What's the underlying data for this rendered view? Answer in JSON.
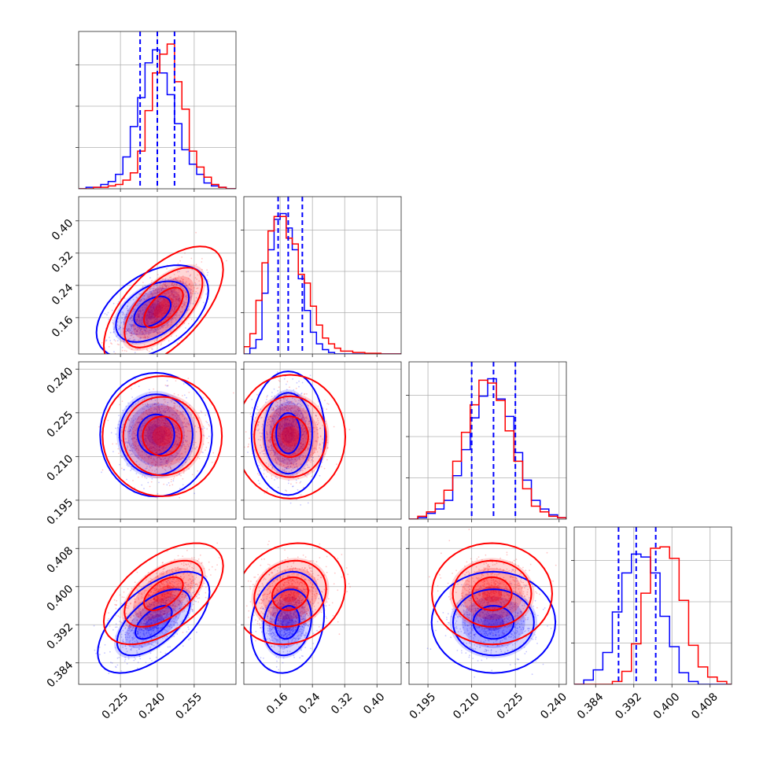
{
  "chart_data": {
    "type": "corner",
    "grid": true,
    "series": [
      {
        "color": "#0000ff"
      },
      {
        "color": "#ff0000"
      }
    ],
    "parameters": [
      {
        "range": [
          0.208,
          0.272
        ],
        "ticks": [
          "0.225",
          "0.240",
          "0.255"
        ],
        "tick_values": [
          0.225,
          0.24,
          0.255
        ]
      },
      {
        "range": [
          0.07,
          0.46
        ],
        "ticks": [
          "0.16",
          "0.24",
          "0.32",
          "0.40"
        ],
        "tick_values": [
          0.16,
          0.24,
          0.32,
          0.4
        ]
      },
      {
        "range": [
          0.1885,
          0.2425
        ],
        "ticks": [
          "0.195",
          "0.210",
          "0.225",
          "0.240"
        ],
        "tick_values": [
          0.195,
          0.21,
          0.225,
          0.24
        ]
      },
      {
        "range": [
          0.3795,
          0.4125
        ],
        "ticks": [
          "0.384",
          "0.392",
          "0.400",
          "0.408"
        ],
        "tick_values": [
          0.384,
          0.392,
          0.4,
          0.408
        ]
      }
    ],
    "quantile_lines": [
      [
        0.233,
        0.24,
        0.247
      ],
      [
        0.155,
        0.18,
        0.215
      ],
      [
        0.21,
        0.2175,
        0.225
      ],
      [
        0.3888,
        0.3925,
        0.3966
      ]
    ],
    "histograms": [
      {
        "blue": [
          [
            0.208,
            0.211,
            0
          ],
          [
            0.211,
            0.214,
            0.01
          ],
          [
            0.214,
            0.217,
            0.01
          ],
          [
            0.217,
            0.22,
            0.03
          ],
          [
            0.22,
            0.223,
            0.05
          ],
          [
            0.223,
            0.226,
            0.1
          ],
          [
            0.226,
            0.229,
            0.22
          ],
          [
            0.229,
            0.232,
            0.43
          ],
          [
            0.232,
            0.235,
            0.63
          ],
          [
            0.235,
            0.238,
            0.87
          ],
          [
            0.238,
            0.241,
            0.96
          ],
          [
            0.241,
            0.244,
            0.8
          ],
          [
            0.244,
            0.247,
            0.65
          ],
          [
            0.247,
            0.25,
            0.45
          ],
          [
            0.25,
            0.253,
            0.27
          ],
          [
            0.253,
            0.256,
            0.17
          ],
          [
            0.256,
            0.259,
            0.1
          ],
          [
            0.259,
            0.262,
            0.04
          ],
          [
            0.262,
            0.265,
            0.02
          ],
          [
            0.265,
            0.268,
            0.01
          ],
          [
            0.268,
            0.272,
            0
          ]
        ],
        "red": [
          [
            0.208,
            0.214,
            0
          ],
          [
            0.214,
            0.217,
            0.01
          ],
          [
            0.217,
            0.22,
            0.01
          ],
          [
            0.22,
            0.223,
            0.02
          ],
          [
            0.223,
            0.226,
            0.03
          ],
          [
            0.226,
            0.229,
            0.06
          ],
          [
            0.229,
            0.232,
            0.11
          ],
          [
            0.232,
            0.235,
            0.26
          ],
          [
            0.235,
            0.238,
            0.54
          ],
          [
            0.238,
            0.241,
            0.8
          ],
          [
            0.241,
            0.244,
            0.93
          ],
          [
            0.244,
            0.247,
            1.0
          ],
          [
            0.247,
            0.25,
            0.74
          ],
          [
            0.25,
            0.253,
            0.55
          ],
          [
            0.253,
            0.256,
            0.26
          ],
          [
            0.256,
            0.259,
            0.15
          ],
          [
            0.259,
            0.262,
            0.08
          ],
          [
            0.262,
            0.265,
            0.03
          ],
          [
            0.265,
            0.268,
            0.01
          ],
          [
            0.268,
            0.272,
            0
          ]
        ]
      },
      {
        "blue": [
          [
            0.07,
            0.085,
            0
          ],
          [
            0.085,
            0.1,
            0.04
          ],
          [
            0.1,
            0.115,
            0.1
          ],
          [
            0.115,
            0.13,
            0.42
          ],
          [
            0.13,
            0.145,
            0.72
          ],
          [
            0.145,
            0.16,
            0.93
          ],
          [
            0.16,
            0.175,
            0.97
          ],
          [
            0.175,
            0.19,
            0.87
          ],
          [
            0.19,
            0.205,
            0.72
          ],
          [
            0.205,
            0.22,
            0.52
          ],
          [
            0.22,
            0.235,
            0.3
          ],
          [
            0.235,
            0.25,
            0.15
          ],
          [
            0.25,
            0.265,
            0.07
          ],
          [
            0.265,
            0.28,
            0.03
          ],
          [
            0.28,
            0.295,
            0.01
          ],
          [
            0.295,
            0.46,
            0
          ]
        ],
        "red": [
          [
            0.07,
            0.085,
            0.05
          ],
          [
            0.085,
            0.1,
            0.14
          ],
          [
            0.1,
            0.115,
            0.37
          ],
          [
            0.115,
            0.13,
            0.63
          ],
          [
            0.13,
            0.145,
            0.85
          ],
          [
            0.145,
            0.16,
            0.95
          ],
          [
            0.16,
            0.175,
            0.95
          ],
          [
            0.175,
            0.19,
            0.8
          ],
          [
            0.19,
            0.205,
            0.76
          ],
          [
            0.205,
            0.22,
            0.55
          ],
          [
            0.22,
            0.235,
            0.49
          ],
          [
            0.235,
            0.25,
            0.33
          ],
          [
            0.25,
            0.265,
            0.2
          ],
          [
            0.265,
            0.28,
            0.11
          ],
          [
            0.28,
            0.295,
            0.07
          ],
          [
            0.295,
            0.31,
            0.04
          ],
          [
            0.31,
            0.325,
            0.02
          ],
          [
            0.325,
            0.34,
            0.02
          ],
          [
            0.34,
            0.37,
            0.01
          ],
          [
            0.37,
            0.41,
            0.005
          ],
          [
            0.41,
            0.46,
            0
          ]
        ]
      },
      {
        "blue": [
          [
            0.1885,
            0.1915,
            0
          ],
          [
            0.1915,
            0.1945,
            0.01
          ],
          [
            0.1945,
            0.1975,
            0.04
          ],
          [
            0.1975,
            0.2005,
            0.07
          ],
          [
            0.2005,
            0.2035,
            0.13
          ],
          [
            0.2035,
            0.2065,
            0.3
          ],
          [
            0.2065,
            0.2095,
            0.48
          ],
          [
            0.2095,
            0.2125,
            0.7
          ],
          [
            0.2125,
            0.2155,
            0.85
          ],
          [
            0.2155,
            0.2185,
            0.97
          ],
          [
            0.2185,
            0.2215,
            0.83
          ],
          [
            0.2215,
            0.2245,
            0.71
          ],
          [
            0.2245,
            0.2275,
            0.46
          ],
          [
            0.2275,
            0.2305,
            0.27
          ],
          [
            0.2305,
            0.2335,
            0.13
          ],
          [
            0.2335,
            0.2365,
            0.07
          ],
          [
            0.2365,
            0.2395,
            0.03
          ],
          [
            0.2395,
            0.2425,
            0.01
          ]
        ],
        "red": [
          [
            0.1885,
            0.1915,
            0
          ],
          [
            0.1915,
            0.1945,
            0.02
          ],
          [
            0.1945,
            0.1975,
            0.05
          ],
          [
            0.1975,
            0.2005,
            0.11
          ],
          [
            0.2005,
            0.2035,
            0.2
          ],
          [
            0.2035,
            0.2065,
            0.4
          ],
          [
            0.2065,
            0.2095,
            0.6
          ],
          [
            0.2095,
            0.2125,
            0.79
          ],
          [
            0.2125,
            0.2155,
            0.96
          ],
          [
            0.2155,
            0.2185,
            0.94
          ],
          [
            0.2185,
            0.2215,
            0.82
          ],
          [
            0.2215,
            0.2245,
            0.61
          ],
          [
            0.2245,
            0.2275,
            0.4
          ],
          [
            0.2275,
            0.2305,
            0.21
          ],
          [
            0.2305,
            0.2335,
            0.09
          ],
          [
            0.2335,
            0.2365,
            0.05
          ],
          [
            0.2365,
            0.2395,
            0.02
          ],
          [
            0.2395,
            0.2425,
            0.01
          ]
        ]
      },
      {
        "blue": [
          [
            0.3795,
            0.3815,
            0
          ],
          [
            0.3815,
            0.3835,
            0.03
          ],
          [
            0.3835,
            0.3855,
            0.1
          ],
          [
            0.3855,
            0.3875,
            0.22
          ],
          [
            0.3875,
            0.3895,
            0.5
          ],
          [
            0.3895,
            0.3915,
            0.77
          ],
          [
            0.3915,
            0.3935,
            0.9
          ],
          [
            0.3935,
            0.3955,
            0.88
          ],
          [
            0.3955,
            0.3975,
            0.77
          ],
          [
            0.3975,
            0.3995,
            0.47
          ],
          [
            0.3995,
            0.4015,
            0.26
          ],
          [
            0.4015,
            0.4035,
            0.08
          ],
          [
            0.4035,
            0.4055,
            0.02
          ],
          [
            0.4055,
            0.4125,
            0
          ]
        ],
        "red": [
          [
            0.3795,
            0.3875,
            0
          ],
          [
            0.3875,
            0.3895,
            0.02
          ],
          [
            0.3895,
            0.3915,
            0.09
          ],
          [
            0.3915,
            0.3935,
            0.28
          ],
          [
            0.3935,
            0.3955,
            0.63
          ],
          [
            0.3955,
            0.3975,
            0.94
          ],
          [
            0.3975,
            0.3995,
            0.95
          ],
          [
            0.3995,
            0.4015,
            0.87
          ],
          [
            0.4015,
            0.4035,
            0.58
          ],
          [
            0.4035,
            0.4055,
            0.27
          ],
          [
            0.4055,
            0.4075,
            0.12
          ],
          [
            0.4075,
            0.4095,
            0.05
          ],
          [
            0.4095,
            0.4115,
            0.02
          ],
          [
            0.4115,
            0.4125,
            0
          ]
        ]
      }
    ],
    "pairs": [
      {
        "row": 1,
        "col": 0,
        "blue": {
          "mean": [
            0.238,
            0.175
          ],
          "sd": [
            0.0075,
            0.038
          ],
          "rho": 0.45
        },
        "red": {
          "mean": [
            0.2425,
            0.185
          ],
          "sd": [
            0.008,
            0.05
          ],
          "rho": 0.62
        }
      },
      {
        "row": 2,
        "col": 0,
        "blue": {
          "mean": [
            0.2395,
            0.2175
          ],
          "sd": [
            0.0075,
            0.007
          ],
          "rho": 0.0
        },
        "red": {
          "mean": [
            0.242,
            0.217
          ],
          "sd": [
            0.008,
            0.0068
          ],
          "rho": 0.0
        }
      },
      {
        "row": 2,
        "col": 1,
        "blue": {
          "mean": [
            0.18,
            0.218
          ],
          "sd": [
            0.03,
            0.007
          ],
          "rho": 0.0
        },
        "red": {
          "mean": [
            0.185,
            0.2168
          ],
          "sd": [
            0.045,
            0.007
          ],
          "rho": 0.0
        }
      },
      {
        "row": 3,
        "col": 0,
        "blue": {
          "mean": [
            0.2385,
            0.3925
          ],
          "sd": [
            0.0075,
            0.0035
          ],
          "rho": 0.6
        },
        "red": {
          "mean": [
            0.2425,
            0.3985
          ],
          "sd": [
            0.008,
            0.0035
          ],
          "rho": 0.55
        }
      },
      {
        "row": 3,
        "col": 1,
        "blue": {
          "mean": [
            0.178,
            0.3925
          ],
          "sd": [
            0.03,
            0.0035
          ],
          "rho": 0.15
        },
        "red": {
          "mean": [
            0.185,
            0.3985
          ],
          "sd": [
            0.045,
            0.0035
          ],
          "rho": 0.15
        }
      },
      {
        "row": 3,
        "col": 2,
        "blue": {
          "mean": [
            0.2175,
            0.3925
          ],
          "sd": [
            0.007,
            0.0035
          ],
          "rho": 0.0
        },
        "red": {
          "mean": [
            0.217,
            0.3985
          ],
          "sd": [
            0.0068,
            0.0035
          ],
          "rho": 0.0
        }
      }
    ]
  }
}
